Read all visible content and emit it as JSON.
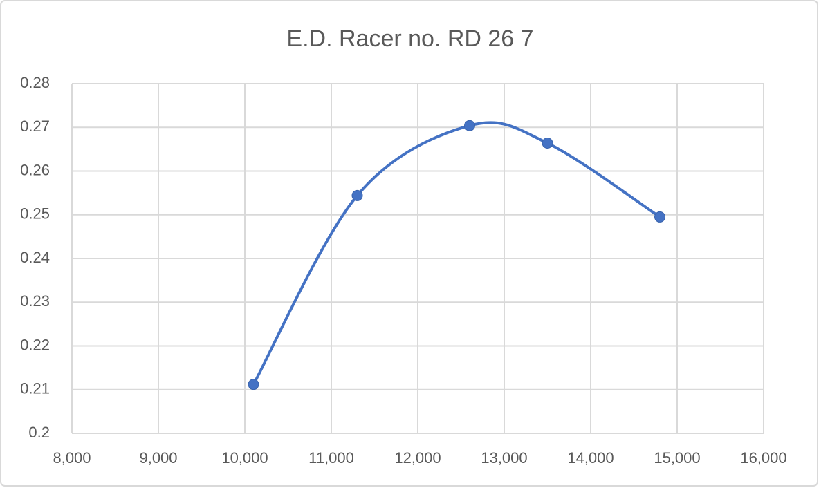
{
  "chart_data": {
    "type": "scatter-smooth",
    "title": "E.D. Racer no. RD 26 7",
    "series": [
      {
        "color": "#4472c4",
        "x": [
          10100,
          11300,
          12600,
          13500,
          14800
        ],
        "values": [
          0.2112,
          0.2544,
          0.2704,
          0.2664,
          0.2495
        ]
      }
    ],
    "xlim": [
      8000,
      16000
    ],
    "xticks": [
      {
        "value": 8000,
        "label": "8,000"
      },
      {
        "value": 9000,
        "label": "9,000"
      },
      {
        "value": 10000,
        "label": "10,000"
      },
      {
        "value": 11000,
        "label": "11,000"
      },
      {
        "value": 12000,
        "label": "12,000"
      },
      {
        "value": 13000,
        "label": "13,000"
      },
      {
        "value": 14000,
        "label": "14,000"
      },
      {
        "value": 15000,
        "label": "15,000"
      },
      {
        "value": 16000,
        "label": "16,000"
      }
    ],
    "ylim": [
      0.2,
      0.28
    ],
    "yticks": [
      0.2,
      0.21,
      0.22,
      0.23,
      0.24,
      0.25,
      0.26,
      0.27,
      0.28
    ],
    "grid": true
  }
}
